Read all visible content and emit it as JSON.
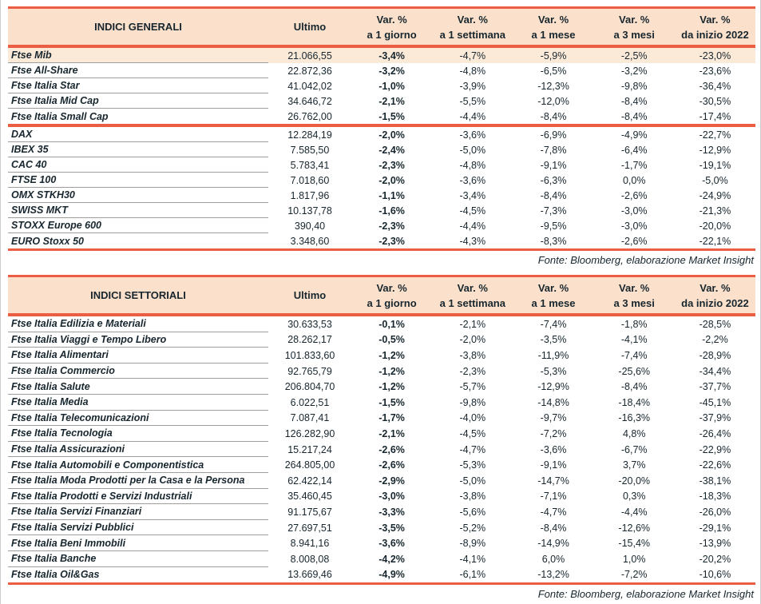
{
  "colors": {
    "accent": "#ec5e44",
    "header_bg": "#fbe1cb",
    "highlight_row_bg": "#fcead9",
    "text": "#17262e",
    "row_separator": "#9e9e9e"
  },
  "source_note": "Fonte: Bloomberg, elaborazione Market Insight",
  "tables": [
    {
      "title": "INDICI GENERALI",
      "ultimo_header": "Ultimo",
      "var_headers": [
        {
          "line1": "Var. %",
          "line2": "a 1 giorno"
        },
        {
          "line1": "Var. %",
          "line2": "a 1 settimana"
        },
        {
          "line1": "Var. %",
          "line2": "a 1 mese"
        },
        {
          "line1": "Var. %",
          "line2": "a 3 mesi"
        },
        {
          "line1": "Var. %",
          "line2": "da inizio 2022"
        }
      ],
      "groups": [
        {
          "rows": [
            {
              "name": "Ftse Mib",
              "ultimo": "21.066,55",
              "var_1d": "-3,4%",
              "var_1w": "-4,7%",
              "var_1m": "-5,9%",
              "var_3m": "-2,5%",
              "var_ytd": "-23,0%",
              "highlight": true
            },
            {
              "name": "Ftse All-Share",
              "ultimo": "22.872,36",
              "var_1d": "-3,2%",
              "var_1w": "-4,8%",
              "var_1m": "-6,5%",
              "var_3m": "-3,2%",
              "var_ytd": "-23,6%"
            },
            {
              "name": "Ftse Italia Star",
              "ultimo": "41.042,02",
              "var_1d": "-1,0%",
              "var_1w": "-3,9%",
              "var_1m": "-12,3%",
              "var_3m": "-9,8%",
              "var_ytd": "-36,4%"
            },
            {
              "name": "Ftse Italia Mid Cap",
              "ultimo": "34.646,72",
              "var_1d": "-2,1%",
              "var_1w": "-5,5%",
              "var_1m": "-12,0%",
              "var_3m": "-8,4%",
              "var_ytd": "-30,5%"
            },
            {
              "name": "Ftse Italia Small Cap",
              "ultimo": "26.762,00",
              "var_1d": "-1,5%",
              "var_1w": "-4,4%",
              "var_1m": "-8,4%",
              "var_3m": "-8,4%",
              "var_ytd": "-17,4%"
            }
          ]
        },
        {
          "rows": [
            {
              "name": "DAX",
              "ultimo": "12.284,19",
              "var_1d": "-2,0%",
              "var_1w": "-3,6%",
              "var_1m": "-6,9%",
              "var_3m": "-4,9%",
              "var_ytd": "-22,7%"
            },
            {
              "name": "IBEX 35",
              "ultimo": "7.585,50",
              "var_1d": "-2,4%",
              "var_1w": "-5,0%",
              "var_1m": "-7,8%",
              "var_3m": "-6,4%",
              "var_ytd": "-12,9%"
            },
            {
              "name": "CAC 40",
              "ultimo": "5.783,41",
              "var_1d": "-2,3%",
              "var_1w": "-4,8%",
              "var_1m": "-9,1%",
              "var_3m": "-1,7%",
              "var_ytd": "-19,1%"
            },
            {
              "name": "FTSE 100",
              "ultimo": "7.018,60",
              "var_1d": "-2,0%",
              "var_1w": "-3,6%",
              "var_1m": "-6,3%",
              "var_3m": "0,0%",
              "var_ytd": "-5,0%"
            },
            {
              "name": "OMX STKH30",
              "ultimo": "1.817,96",
              "var_1d": "-1,1%",
              "var_1w": "-3,4%",
              "var_1m": "-8,4%",
              "var_3m": "-2,6%",
              "var_ytd": "-24,9%"
            },
            {
              "name": "SWISS MKT",
              "ultimo": "10.137,78",
              "var_1d": "-1,6%",
              "var_1w": "-4,5%",
              "var_1m": "-7,3%",
              "var_3m": "-3,0%",
              "var_ytd": "-21,3%"
            },
            {
              "name": "STOXX Europe 600",
              "ultimo": "390,40",
              "var_1d": "-2,3%",
              "var_1w": "-4,4%",
              "var_1m": "-9,5%",
              "var_3m": "-3,0%",
              "var_ytd": "-20,0%"
            },
            {
              "name": "EURO Stoxx 50",
              "ultimo": "3.348,60",
              "var_1d": "-2,3%",
              "var_1w": "-4,3%",
              "var_1m": "-8,3%",
              "var_3m": "-2,6%",
              "var_ytd": "-22,1%"
            }
          ]
        }
      ]
    },
    {
      "title": "INDICI SETTORIALI",
      "ultimo_header": "Ultimo",
      "var_headers": [
        {
          "line1": "Var. %",
          "line2": "a 1 giorno"
        },
        {
          "line1": "Var. %",
          "line2": "a 1 settimana"
        },
        {
          "line1": "Var. %",
          "line2": "a 1 mese"
        },
        {
          "line1": "Var. %",
          "line2": "a 3 mesi"
        },
        {
          "line1": "Var. %",
          "line2": "da inizio 2022"
        }
      ],
      "groups": [
        {
          "rows": [
            {
              "name": "Ftse Italia Edilizia e Materiali",
              "ultimo": "30.633,53",
              "var_1d": "-0,1%",
              "var_1w": "-2,1%",
              "var_1m": "-7,4%",
              "var_3m": "-1,8%",
              "var_ytd": "-28,5%"
            },
            {
              "name": "Ftse Italia Viaggi e Tempo Libero",
              "ultimo": "28.262,17",
              "var_1d": "-0,5%",
              "var_1w": "-2,0%",
              "var_1m": "-3,5%",
              "var_3m": "-4,1%",
              "var_ytd": "-2,2%"
            },
            {
              "name": "Ftse Italia Alimentari",
              "ultimo": "101.833,60",
              "var_1d": "-1,2%",
              "var_1w": "-3,8%",
              "var_1m": "-11,9%",
              "var_3m": "-7,4%",
              "var_ytd": "-28,9%"
            },
            {
              "name": "Ftse Italia Commercio",
              "ultimo": "92.765,79",
              "var_1d": "-1,2%",
              "var_1w": "-2,3%",
              "var_1m": "-5,3%",
              "var_3m": "-25,6%",
              "var_ytd": "-34,4%"
            },
            {
              "name": "Ftse Italia Salute",
              "ultimo": "206.804,70",
              "var_1d": "-1,2%",
              "var_1w": "-5,7%",
              "var_1m": "-12,9%",
              "var_3m": "-8,4%",
              "var_ytd": "-37,7%"
            },
            {
              "name": "Ftse Italia Media",
              "ultimo": "6.022,51",
              "var_1d": "-1,5%",
              "var_1w": "-9,8%",
              "var_1m": "-14,8%",
              "var_3m": "-18,4%",
              "var_ytd": "-45,1%"
            },
            {
              "name": "Ftse Italia Telecomunicazioni",
              "ultimo": "7.087,41",
              "var_1d": "-1,7%",
              "var_1w": "-4,0%",
              "var_1m": "-9,7%",
              "var_3m": "-16,3%",
              "var_ytd": "-37,9%"
            },
            {
              "name": "Ftse Italia Tecnologia",
              "ultimo": "126.282,90",
              "var_1d": "-2,1%",
              "var_1w": "-4,5%",
              "var_1m": "-7,2%",
              "var_3m": "4,8%",
              "var_ytd": "-26,4%"
            },
            {
              "name": "Ftse Italia Assicurazioni",
              "ultimo": "15.217,24",
              "var_1d": "-2,6%",
              "var_1w": "-4,7%",
              "var_1m": "-3,6%",
              "var_3m": "-6,7%",
              "var_ytd": "-22,9%"
            },
            {
              "name": "Ftse Italia Automobili e Componentistica",
              "ultimo": "264.805,00",
              "var_1d": "-2,6%",
              "var_1w": "-5,3%",
              "var_1m": "-9,1%",
              "var_3m": "3,7%",
              "var_ytd": "-22,6%"
            },
            {
              "name": "Ftse Italia Moda Prodotti per la Casa e la Persona",
              "ultimo": "62.422,14",
              "var_1d": "-2,9%",
              "var_1w": "-5,0%",
              "var_1m": "-14,7%",
              "var_3m": "-20,0%",
              "var_ytd": "-38,1%"
            },
            {
              "name": "Ftse Italia Prodotti e Servizi Industriali",
              "ultimo": "35.460,45",
              "var_1d": "-3,0%",
              "var_1w": "-3,8%",
              "var_1m": "-7,1%",
              "var_3m": "0,3%",
              "var_ytd": "-18,3%"
            },
            {
              "name": "Ftse Italia Servizi Finanziari",
              "ultimo": "91.175,67",
              "var_1d": "-3,3%",
              "var_1w": "-5,6%",
              "var_1m": "-4,7%",
              "var_3m": "-4,4%",
              "var_ytd": "-26,0%"
            },
            {
              "name": "Ftse Italia Servizi Pubblici",
              "ultimo": "27.697,51",
              "var_1d": "-3,5%",
              "var_1w": "-5,2%",
              "var_1m": "-8,4%",
              "var_3m": "-12,6%",
              "var_ytd": "-29,1%"
            },
            {
              "name": "Ftse Italia Beni Immobili",
              "ultimo": "8.941,16",
              "var_1d": "-3,6%",
              "var_1w": "-8,9%",
              "var_1m": "-14,9%",
              "var_3m": "-15,4%",
              "var_ytd": "-13,9%"
            },
            {
              "name": "Ftse Italia Banche",
              "ultimo": "8.008,08",
              "var_1d": "-4,2%",
              "var_1w": "-4,1%",
              "var_1m": "6,0%",
              "var_3m": "1,0%",
              "var_ytd": "-20,2%"
            },
            {
              "name": "Ftse Italia Oil&Gas",
              "ultimo": "13.669,46",
              "var_1d": "-4,9%",
              "var_1w": "-6,1%",
              "var_1m": "-13,2%",
              "var_3m": "-7,2%",
              "var_ytd": "-10,6%"
            }
          ]
        }
      ]
    }
  ]
}
